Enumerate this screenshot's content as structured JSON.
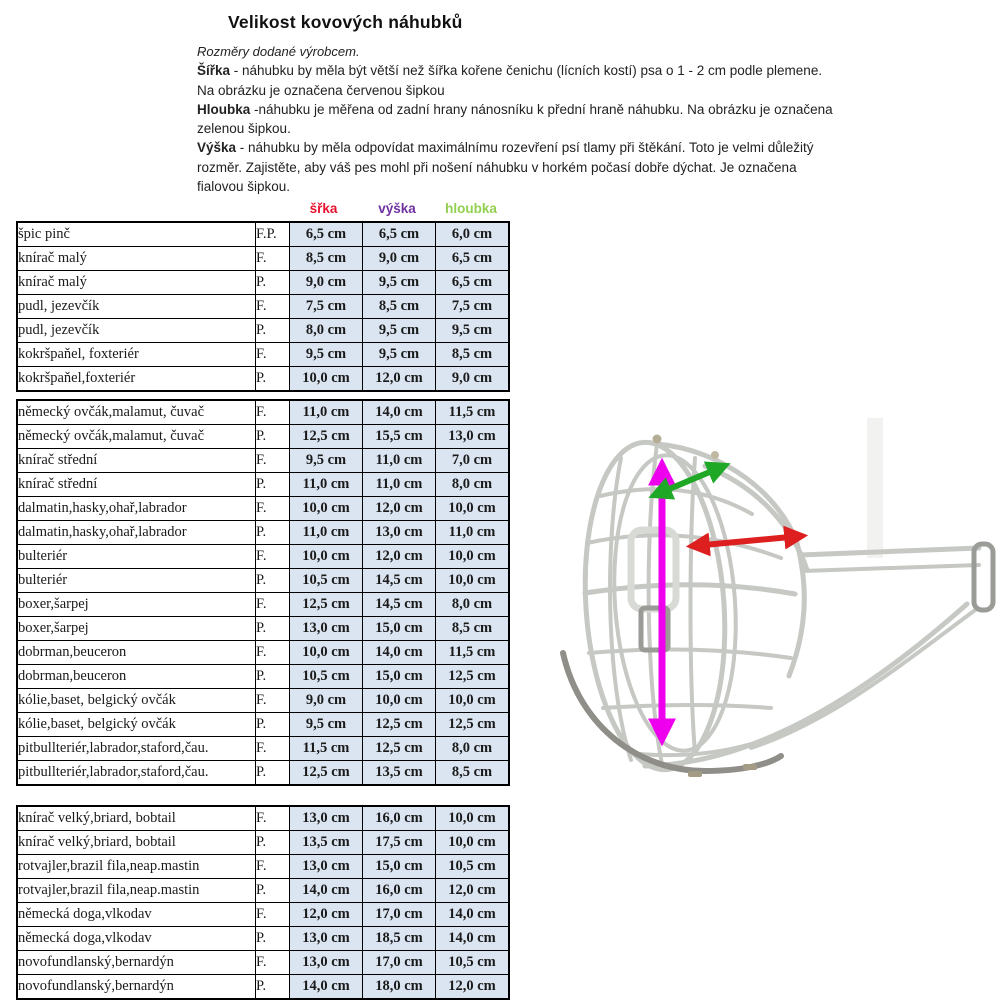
{
  "title": "Velikost kovových náhubků",
  "intro": {
    "lines": [
      {
        "lead": "",
        "text": "Rozměry dodané výrobcem.",
        "italic": true
      },
      {
        "lead": "Šířka",
        "text": " - náhubku by měla být větší než šířka kořene čenichu (lícních kostí) psa o 1 - 2 cm podle plemene.",
        "italic": false
      },
      {
        "lead": "",
        "text": "Na obrázku je označena červenou šipkou",
        "italic": false
      },
      {
        "lead": "Hloubka",
        "text": " -náhubku je měřena od zadní hrany nánosníku k přední hraně náhubku. Na obrázku je označena",
        "italic": false
      },
      {
        "lead": "",
        "text": "zelenou šipkou.",
        "italic": false
      },
      {
        "lead": "Výška",
        "text": " - náhubku by měla odpovídat maximálnímu rozevření psí tlamy při štěkání. Toto je velmi důležitý",
        "italic": false
      },
      {
        "lead": "",
        "text": "rozměr. Zajistěte, aby váš pes mohl při nošení náhubku v horkém počasí dobře dýchat. Je označena",
        "italic": false
      },
      {
        "lead": "",
        "text": "fialovou šipkou.",
        "italic": false
      }
    ]
  },
  "table": {
    "headers": [
      {
        "label": "šřka",
        "color": "#e8112d"
      },
      {
        "label": "výška",
        "color": "#7030a0"
      },
      {
        "label": "hloubka",
        "color": "#92d050"
      }
    ],
    "groups": [
      [
        {
          "breed": "špic pinč",
          "size": "F.P.",
          "w": "6,5 cm",
          "h": "6,5 cm",
          "d": "6,0 cm"
        },
        {
          "breed": "knírač malý",
          "size": "F.",
          "w": "8,5 cm",
          "h": "9,0 cm",
          "d": "6,5 cm"
        },
        {
          "breed": "knírač malý",
          "size": "P.",
          "w": "9,0 cm",
          "h": "9,5 cm",
          "d": "6,5 cm"
        },
        {
          "breed": "pudl, jezevčík",
          "size": "F.",
          "w": "7,5 cm",
          "h": "8,5 cm",
          "d": "7,5 cm"
        },
        {
          "breed": "pudl, jezevčík",
          "size": "P.",
          "w": "8,0 cm",
          "h": "9,5 cm",
          "d": "9,5 cm"
        },
        {
          "breed": "kokršpaňel, foxteriér",
          "size": "F.",
          "w": "9,5 cm",
          "h": "9,5 cm",
          "d": "8,5 cm"
        },
        {
          "breed": "kokršpaňel,foxteriér",
          "size": "P.",
          "w": "10,0 cm",
          "h": "12,0 cm",
          "d": "9,0 cm"
        }
      ],
      [
        {
          "breed": "německý ovčák,malamut, čuvač",
          "size": "F.",
          "w": "11,0 cm",
          "h": "14,0 cm",
          "d": "11,5 cm"
        },
        {
          "breed": "německý ovčák,malamut, čuvač",
          "size": "P.",
          "w": "12,5 cm",
          "h": "15,5 cm",
          "d": "13,0 cm"
        },
        {
          "breed": "knírač střední",
          "size": "F.",
          "w": "9,5 cm",
          "h": "11,0 cm",
          "d": "7,0 cm"
        },
        {
          "breed": "knírač střední",
          "size": "P.",
          "w": "11,0 cm",
          "h": "11,0 cm",
          "d": "8,0 cm"
        },
        {
          "breed": "dalmatin,hasky,ohař,labrador",
          "size": "F.",
          "w": "10,0 cm",
          "h": "12,0 cm",
          "d": "10,0 cm"
        },
        {
          "breed": "dalmatin,hasky,ohař,labrador",
          "size": "P.",
          "w": "11,0 cm",
          "h": "13,0 cm",
          "d": "11,0 cm"
        },
        {
          "breed": "bulteriér",
          "size": "F.",
          "w": "10,0 cm",
          "h": "12,0 cm",
          "d": "10,0 cm"
        },
        {
          "breed": "bulteriér",
          "size": "P.",
          "w": "10,5 cm",
          "h": "14,5 cm",
          "d": "10,0 cm"
        },
        {
          "breed": "boxer,šarpej",
          "size": "F.",
          "w": "12,5 cm",
          "h": "14,5 cm",
          "d": "8,0 cm"
        },
        {
          "breed": "boxer,šarpej",
          "size": "P.",
          "w": "13,0 cm",
          "h": "15,0 cm",
          "d": "8,5 cm"
        },
        {
          "breed": "dobrman,beuceron",
          "size": "F.",
          "w": "10,0 cm",
          "h": "14,0 cm",
          "d": "11,5 cm"
        },
        {
          "breed": "dobrman,beuceron",
          "size": "P.",
          "w": "10,5 cm",
          "h": "15,0 cm",
          "d": "12,5 cm"
        },
        {
          "breed": "kólie,baset, belgický ovčák",
          "size": "F.",
          "w": "9,0 cm",
          "h": "10,0 cm",
          "d": "10,0 cm"
        },
        {
          "breed": "kólie,baset, belgický ovčák",
          "size": "P.",
          "w": "9,5 cm",
          "h": "12,5 cm",
          "d": "12,5 cm"
        },
        {
          "breed": "pitbullteriér,labrador,staford,čau.",
          "size": "F.",
          "w": "11,5 cm",
          "h": "12,5 cm",
          "d": "8,0 cm"
        },
        {
          "breed": "pitbullteriér,labrador,staford,čau.",
          "size": "P.",
          "w": "12,5 cm",
          "h": "13,5 cm",
          "d": "8,5 cm"
        }
      ],
      [
        {
          "breed": "knírač velký,briard, bobtail",
          "size": "F.",
          "w": "13,0 cm",
          "h": "16,0 cm",
          "d": "10,0 cm"
        },
        {
          "breed": "knírač velký,briard, bobtail",
          "size": "P.",
          "w": "13,5 cm",
          "h": "17,5 cm",
          "d": "10,0 cm"
        },
        {
          "breed": "rotvajler,brazil fila,neap.mastin",
          "size": "F.",
          "w": "13,0 cm",
          "h": "15,0 cm",
          "d": "10,5 cm"
        },
        {
          "breed": "rotvajler,brazil fila,neap.mastin",
          "size": "P.",
          "w": "14,0 cm",
          "h": "16,0 cm",
          "d": "12,0 cm"
        },
        {
          "breed": "německá doga,vlkodav",
          "size": "F.",
          "w": "12,0 cm",
          "h": "17,0 cm",
          "d": "14,0 cm"
        },
        {
          "breed": "německá doga,vlkodav",
          "size": "P.",
          "w": "13,0 cm",
          "h": "18,5 cm",
          "d": "14,0 cm"
        },
        {
          "breed": "novofundlanský,bernardýn",
          "size": "F.",
          "w": "13,0 cm",
          "h": "17,0 cm",
          "d": "10,5 cm"
        },
        {
          "breed": "novofundlanský,bernardýn",
          "size": "P.",
          "w": "14,0 cm",
          "h": "18,0 cm",
          "d": "12,0 cm"
        }
      ]
    ]
  },
  "figure": {
    "description": "wire-muzzle-photo-with-measurement-arrows",
    "colors": {
      "width_arrow": "#dd1f1f",
      "height_arrow": "#ee00ee",
      "depth_arrow": "#1ea826",
      "wire": "#c6c8c4",
      "wire_dark": "#8f8e88"
    }
  }
}
